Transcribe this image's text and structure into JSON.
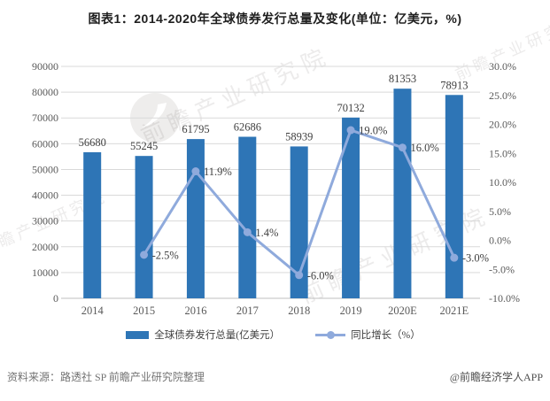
{
  "title": "图表1：2014-2020年全球债券发行总量及变化(单位：亿美元，%)",
  "legend": [
    {
      "label": "全球债券发行总量(亿美元）",
      "type": "bar"
    },
    {
      "label": "同比增长（%）",
      "type": "line"
    }
  ],
  "footer": {
    "source": "资料来源：路透社 SP 前瞻产业研究院整理",
    "brand": "@前瞻经济学人APP"
  },
  "watermark": {
    "text": "前瞻产业研究院",
    "logo_name": "qianzhan-logo"
  },
  "colors": {
    "bar": "#2E75B6",
    "line": "#8FAADC",
    "grid": "#D9D9D9",
    "axis_line": "#BFBFBF",
    "axis_text": "#595959",
    "label_text": "#404040"
  },
  "chart_data": {
    "type": "bar+line combo",
    "title": "图表1：2014-2020年全球债券发行总量及变化(单位：亿美元，%)",
    "categories": [
      "2014",
      "2015",
      "2016",
      "2017",
      "2018",
      "2019",
      "2020E",
      "2021E"
    ],
    "series": [
      {
        "name": "全球债券发行总量(亿美元）",
        "type": "bar",
        "axis": "left",
        "values": [
          56680,
          55245,
          61795,
          62686,
          58939,
          70132,
          81353,
          78913
        ],
        "labels": [
          "56680",
          "55245",
          "61795",
          "62686",
          "58939",
          "70132",
          "81353",
          "78913"
        ]
      },
      {
        "name": "同比增长（%）",
        "type": "line",
        "axis": "right",
        "values": [
          null,
          -2.5,
          11.9,
          1.4,
          -6.0,
          19.0,
          16.0,
          -3.0
        ],
        "labels": [
          "",
          "-2.5%",
          "11.9%",
          "1.4%",
          "-6.0%",
          "19.0%",
          "16.0%",
          "-3.0%"
        ]
      }
    ],
    "left_axis": {
      "min": 0,
      "max": 90000,
      "step": 10000,
      "labels": [
        "90000",
        "80000",
        "70000",
        "60000",
        "50000",
        "40000",
        "30000",
        "20000",
        "10000",
        "0"
      ]
    },
    "right_axis": {
      "min": -10,
      "max": 30,
      "step": 5,
      "labels": [
        "30.0%",
        "25.0%",
        "20.0%",
        "15.0%",
        "10.0%",
        "5.0%",
        "0.0%",
        "-5.0%",
        "-10.0%"
      ]
    },
    "grid": "horizontal",
    "legend_position": "bottom"
  }
}
